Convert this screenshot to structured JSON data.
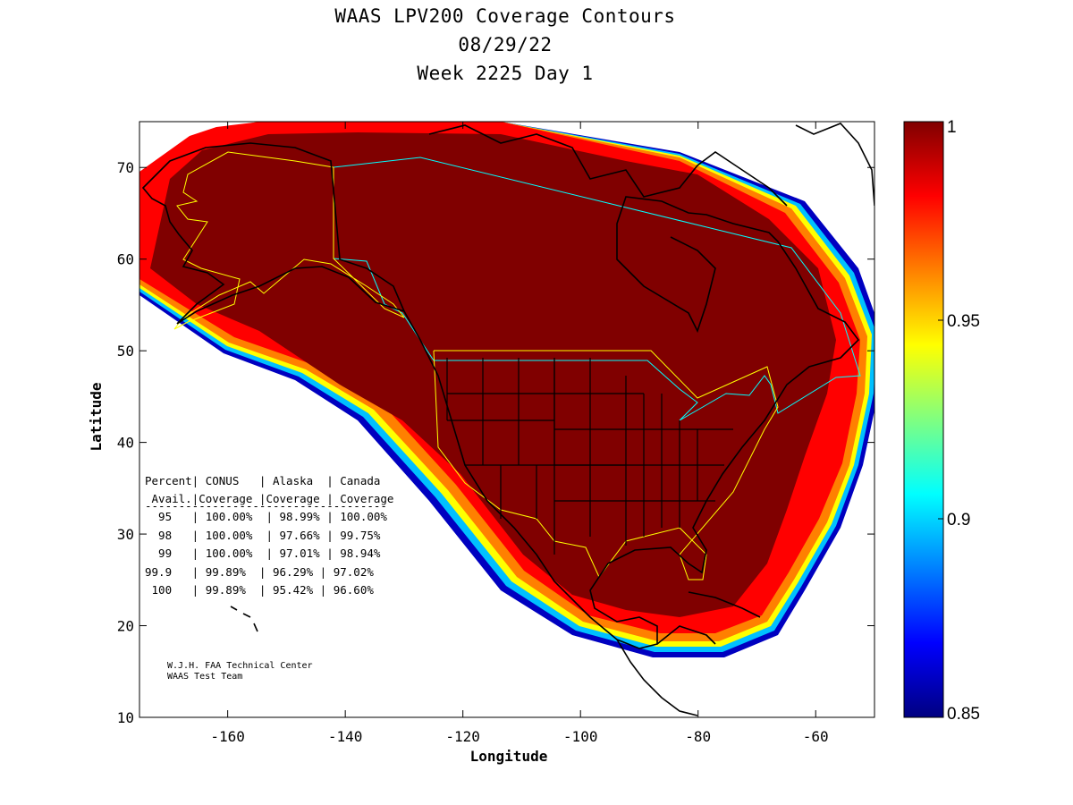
{
  "title": {
    "line1": "WAAS LPV200 Coverage Contours",
    "line2": "08/29/22",
    "line3": "Week 2225 Day 1"
  },
  "axes": {
    "xlabel": "Longitude",
    "ylabel": "Latitude",
    "x_ticks": [
      "-160",
      "-140",
      "-120",
      "-100",
      "-80",
      "-60"
    ],
    "y_ticks": [
      "10",
      "20",
      "30",
      "40",
      "50",
      "60",
      "70"
    ],
    "xlim": [
      -175,
      -50
    ],
    "ylim": [
      10,
      75
    ]
  },
  "colorbar": {
    "ticks": [
      "1",
      "0.95",
      "0.9",
      "0.85"
    ],
    "range": [
      0.85,
      1.0
    ],
    "colormap": [
      "#000080",
      "#0000ff",
      "#0080ff",
      "#00ffff",
      "#80ff80",
      "#ffff00",
      "#ff8000",
      "#ff0000",
      "#800000"
    ]
  },
  "colors": {
    "coverage_full": "#800000",
    "coverage_edge": "#ff0000",
    "state_borders": "#000000",
    "conus_boundary": "#ffff00",
    "canada_boundary": "#00ffff"
  },
  "stats_table": {
    "header1": "Percent| CONUS   | Alaska  | Canada",
    "header2": " Avail.|Coverage |Coverage | Coverage",
    "rule": "------------------------------------",
    "rows": [
      "  95   | 100.00%  | 98.99% | 100.00%",
      "  98   | 100.00%  | 97.66% | 99.75%",
      "  99   | 100.00%  | 97.01% | 98.94%",
      "99.9   | 99.89%  | 96.29% | 97.02%",
      " 100   | 99.89%  | 95.42% | 96.60%"
    ]
  },
  "credit": {
    "line1": "W.J.H. FAA Technical Center",
    "line2": "WAAS Test Team"
  }
}
